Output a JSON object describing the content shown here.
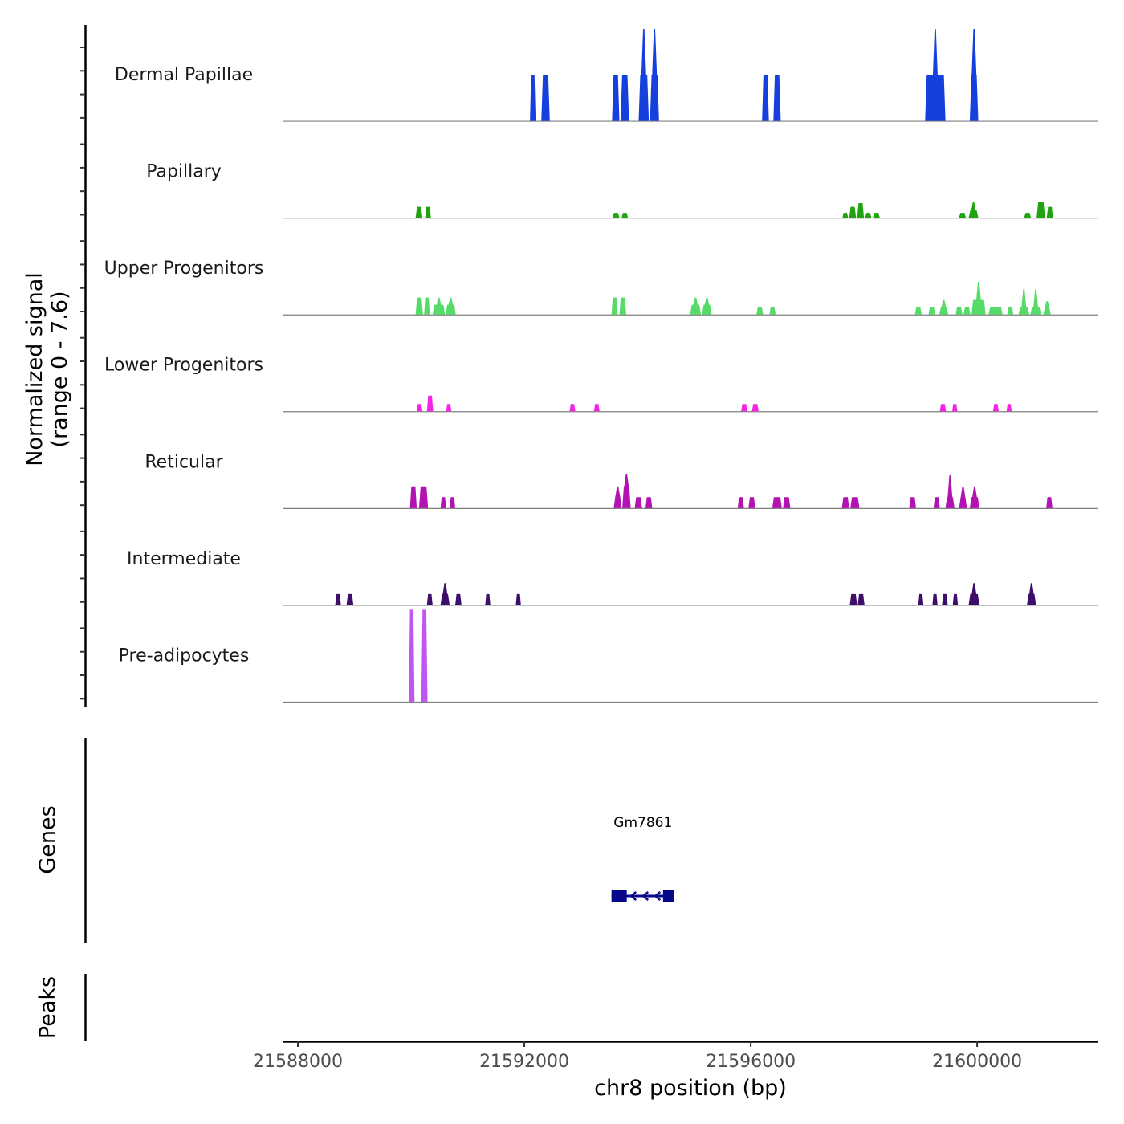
{
  "chart_data": {
    "type": "area",
    "title": "",
    "xlabel": "chr8 position (bp)",
    "ylabel": "Normalized signal\n(range 0 - 7.6)",
    "ylabel_lines": [
      "Normalized signal",
      "(range 0 - 7.6)"
    ],
    "ylim": [
      0,
      7.6
    ],
    "xlim": [
      21587730,
      21602140
    ],
    "x_ticks": [
      21588000,
      21592000,
      21596000,
      21600000
    ],
    "x_tick_labels": [
      "21588000",
      "21592000",
      "21596000",
      "21600000"
    ],
    "grid": false,
    "legend": "none",
    "series": [
      {
        "name": "Dermal Papillae",
        "color": "#1640DD",
        "peaks": [
          {
            "start": 21592100,
            "end": 21592200,
            "value": 3.8
          },
          {
            "start": 21592300,
            "end": 21592450,
            "value": 3.8
          },
          {
            "start": 21593550,
            "end": 21593680,
            "value": 3.8
          },
          {
            "start": 21593700,
            "end": 21593850,
            "value": 3.8
          },
          {
            "start": 21594020,
            "end": 21594200,
            "value": 3.8,
            "spike": 7.6
          },
          {
            "start": 21594220,
            "end": 21594380,
            "value": 3.8,
            "spike": 7.6
          },
          {
            "start": 21596200,
            "end": 21596320,
            "value": 3.8
          },
          {
            "start": 21596400,
            "end": 21596530,
            "value": 3.8
          },
          {
            "start": 21599080,
            "end": 21599440,
            "value": 3.8,
            "spike": 7.6
          },
          {
            "start": 21599870,
            "end": 21600020,
            "value": 3.8,
            "spike": 7.6
          }
        ]
      },
      {
        "name": "Papillary",
        "color": "#1FA30F",
        "peaks": [
          {
            "start": 21590080,
            "end": 21590200,
            "value": 0.9
          },
          {
            "start": 21590250,
            "end": 21590350,
            "value": 0.9
          },
          {
            "start": 21593560,
            "end": 21593680,
            "value": 0.4
          },
          {
            "start": 21593720,
            "end": 21593830,
            "value": 0.4
          },
          {
            "start": 21597620,
            "end": 21597720,
            "value": 0.4
          },
          {
            "start": 21597740,
            "end": 21597860,
            "value": 0.9
          },
          {
            "start": 21597880,
            "end": 21598000,
            "value": 1.2
          },
          {
            "start": 21598020,
            "end": 21598130,
            "value": 0.4
          },
          {
            "start": 21598160,
            "end": 21598280,
            "value": 0.4
          },
          {
            "start": 21599680,
            "end": 21599800,
            "value": 0.4
          },
          {
            "start": 21599850,
            "end": 21600020,
            "value": 0.6,
            "spike": 1.3
          },
          {
            "start": 21600830,
            "end": 21600950,
            "value": 0.4
          },
          {
            "start": 21601050,
            "end": 21601200,
            "value": 1.3
          },
          {
            "start": 21601230,
            "end": 21601340,
            "value": 0.9
          }
        ]
      },
      {
        "name": "Upper Progenitors",
        "color": "#57DB68",
        "peaks": [
          {
            "start": 21590080,
            "end": 21590210,
            "value": 1.4
          },
          {
            "start": 21590230,
            "end": 21590330,
            "value": 1.4
          },
          {
            "start": 21590380,
            "end": 21590600,
            "value": 0.8,
            "spike": 1.4
          },
          {
            "start": 21590610,
            "end": 21590790,
            "value": 0.8,
            "spike": 1.4
          },
          {
            "start": 21593540,
            "end": 21593650,
            "value": 1.4
          },
          {
            "start": 21593680,
            "end": 21593800,
            "value": 1.4
          },
          {
            "start": 21594930,
            "end": 21595120,
            "value": 0.8,
            "spike": 1.4
          },
          {
            "start": 21595140,
            "end": 21595310,
            "value": 0.8,
            "spike": 1.4
          },
          {
            "start": 21596100,
            "end": 21596220,
            "value": 0.6
          },
          {
            "start": 21596330,
            "end": 21596440,
            "value": 0.6
          },
          {
            "start": 21598900,
            "end": 21599020,
            "value": 0.6
          },
          {
            "start": 21599140,
            "end": 21599260,
            "value": 0.6
          },
          {
            "start": 21599330,
            "end": 21599490,
            "value": 0.6,
            "spike": 1.2
          },
          {
            "start": 21599620,
            "end": 21599740,
            "value": 0.6
          },
          {
            "start": 21599760,
            "end": 21599880,
            "value": 0.6
          },
          {
            "start": 21599900,
            "end": 21600150,
            "value": 1.2,
            "spike": 2.7
          },
          {
            "start": 21600200,
            "end": 21600450,
            "value": 0.6
          },
          {
            "start": 21600530,
            "end": 21600640,
            "value": 0.6
          },
          {
            "start": 21600730,
            "end": 21600920,
            "value": 0.6,
            "spike": 2.1
          },
          {
            "start": 21600940,
            "end": 21601130,
            "value": 0.6,
            "spike": 2.1
          },
          {
            "start": 21601170,
            "end": 21601300,
            "value": 0.6,
            "spike": 1.1
          }
        ]
      },
      {
        "name": "Lower Progenitors",
        "color": "#F522E8",
        "peaks": [
          {
            "start": 21590100,
            "end": 21590200,
            "value": 0.6
          },
          {
            "start": 21590280,
            "end": 21590390,
            "value": 1.3
          },
          {
            "start": 21590620,
            "end": 21590710,
            "value": 0.6
          },
          {
            "start": 21592800,
            "end": 21592900,
            "value": 0.6
          },
          {
            "start": 21593230,
            "end": 21593330,
            "value": 0.6
          },
          {
            "start": 21595830,
            "end": 21595940,
            "value": 0.6
          },
          {
            "start": 21596020,
            "end": 21596140,
            "value": 0.6
          },
          {
            "start": 21599340,
            "end": 21599450,
            "value": 0.6
          },
          {
            "start": 21599560,
            "end": 21599650,
            "value": 0.6
          },
          {
            "start": 21600280,
            "end": 21600380,
            "value": 0.6
          },
          {
            "start": 21600520,
            "end": 21600610,
            "value": 0.6
          }
        ]
      },
      {
        "name": "Reticular",
        "color": "#B312B3",
        "peaks": [
          {
            "start": 21589980,
            "end": 21590100,
            "value": 1.8
          },
          {
            "start": 21590140,
            "end": 21590300,
            "value": 1.8
          },
          {
            "start": 21590520,
            "end": 21590620,
            "value": 0.9
          },
          {
            "start": 21590680,
            "end": 21590780,
            "value": 0.9
          },
          {
            "start": 21593580,
            "end": 21593720,
            "value": 1.0,
            "spike": 1.8
          },
          {
            "start": 21593730,
            "end": 21593880,
            "value": 1.8,
            "spike": 2.8
          },
          {
            "start": 21593950,
            "end": 21594080,
            "value": 0.9
          },
          {
            "start": 21594140,
            "end": 21594260,
            "value": 0.9
          },
          {
            "start": 21595770,
            "end": 21595880,
            "value": 0.9
          },
          {
            "start": 21595960,
            "end": 21596080,
            "value": 0.9
          },
          {
            "start": 21596380,
            "end": 21596550,
            "value": 0.9
          },
          {
            "start": 21596570,
            "end": 21596700,
            "value": 0.9
          },
          {
            "start": 21597610,
            "end": 21597740,
            "value": 0.9
          },
          {
            "start": 21597760,
            "end": 21597920,
            "value": 0.9
          },
          {
            "start": 21598800,
            "end": 21598920,
            "value": 0.9
          },
          {
            "start": 21599230,
            "end": 21599340,
            "value": 0.9
          },
          {
            "start": 21599440,
            "end": 21599600,
            "value": 0.9,
            "spike": 2.7
          },
          {
            "start": 21599680,
            "end": 21599820,
            "value": 0.9,
            "spike": 1.8
          },
          {
            "start": 21599870,
            "end": 21600040,
            "value": 0.9,
            "spike": 1.8
          },
          {
            "start": 21601220,
            "end": 21601330,
            "value": 0.9
          }
        ]
      },
      {
        "name": "Intermediate",
        "color": "#3E0F6A",
        "peaks": [
          {
            "start": 21588660,
            "end": 21588760,
            "value": 0.9
          },
          {
            "start": 21588860,
            "end": 21588980,
            "value": 0.9
          },
          {
            "start": 21590280,
            "end": 21590380,
            "value": 0.9
          },
          {
            "start": 21590520,
            "end": 21590680,
            "value": 0.9,
            "spike": 1.8
          },
          {
            "start": 21590780,
            "end": 21590890,
            "value": 0.9
          },
          {
            "start": 21591310,
            "end": 21591400,
            "value": 0.9
          },
          {
            "start": 21591850,
            "end": 21591940,
            "value": 0.9
          },
          {
            "start": 21597750,
            "end": 21597880,
            "value": 0.9
          },
          {
            "start": 21597890,
            "end": 21598010,
            "value": 0.9
          },
          {
            "start": 21598960,
            "end": 21599050,
            "value": 0.9
          },
          {
            "start": 21599210,
            "end": 21599300,
            "value": 0.9
          },
          {
            "start": 21599380,
            "end": 21599480,
            "value": 0.9
          },
          {
            "start": 21599570,
            "end": 21599660,
            "value": 0.9
          },
          {
            "start": 21599850,
            "end": 21600040,
            "value": 0.9,
            "spike": 1.8
          },
          {
            "start": 21600880,
            "end": 21601040,
            "value": 0.9,
            "spike": 1.8
          }
        ]
      },
      {
        "name": "Pre-adipocytes",
        "color": "#C055F2",
        "peaks": [
          {
            "start": 21589960,
            "end": 21590060,
            "value": 7.6
          },
          {
            "start": 21590180,
            "end": 21590290,
            "value": 7.6
          }
        ]
      }
    ],
    "genes": {
      "label": "Genes",
      "items": [
        {
          "name": "Gm7861",
          "strand": "-",
          "start": 21593540,
          "end": 21594650,
          "exons": [
            [
              21593540,
              21593810
            ],
            [
              21594450,
              21594650
            ]
          ],
          "color": "#08088A"
        }
      ]
    },
    "peaks_track": {
      "label": "Peaks",
      "items": []
    }
  }
}
